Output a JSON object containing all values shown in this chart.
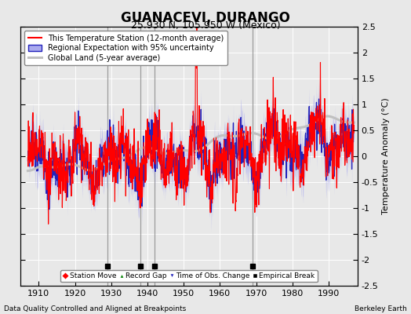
{
  "title": "GUANACEVI, DURANGO",
  "subtitle": "25.930 N, 105.950 W (Mexico)",
  "ylabel": "Temperature Anomaly (°C)",
  "xlim": [
    1905,
    1998
  ],
  "ylim": [
    -2.5,
    2.5
  ],
  "yticks": [
    -2.5,
    -2,
    -1.5,
    -1,
    -0.5,
    0,
    0.5,
    1,
    1.5,
    2,
    2.5
  ],
  "xticks": [
    1910,
    1920,
    1930,
    1940,
    1950,
    1960,
    1970,
    1980,
    1990
  ],
  "background_color": "#e8e8e8",
  "plot_bg_color": "#e8e8e8",
  "grid_color": "white",
  "vertical_lines": [
    1929,
    1938,
    1942,
    1969
  ],
  "vertical_line_color": "#888888",
  "empirical_breaks": [
    1929,
    1938,
    1942,
    1969
  ],
  "footer_left": "Data Quality Controlled and Aligned at Breakpoints",
  "footer_right": "Berkeley Earth",
  "legend_items": [
    {
      "label": "This Temperature Station (12-month average)",
      "color": "red",
      "lw": 1.5
    },
    {
      "label": "Regional Expectation with 95% uncertainty",
      "color": "#4444cc",
      "lw": 1.5
    },
    {
      "label": "Global Land (5-year average)",
      "color": "#aaaaaa",
      "lw": 2.0
    }
  ]
}
